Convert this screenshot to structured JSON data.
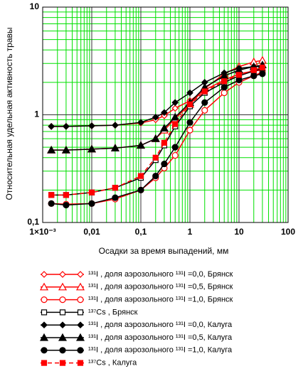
{
  "chart_data": {
    "type": "line",
    "y_label": "Относительная удельная активность травы",
    "x_label": "Осадки за время выпадений, мм",
    "log_x": true,
    "log_y": true,
    "grid": true,
    "minor_grid": true,
    "xlim": [
      0.001,
      100
    ],
    "xticks": [
      {
        "value": 0.001,
        "label": "1×10⁻³"
      },
      {
        "value": 0.01,
        "label": "0,01"
      },
      {
        "value": 0.1,
        "label": "0,1"
      },
      1,
      10,
      100
    ],
    "ylim": [
      0.1,
      10
    ],
    "yticks": [
      {
        "value": 0.1,
        "label": "0,1"
      },
      1,
      10
    ],
    "x": [
      0.0015,
      0.003,
      0.01,
      0.03,
      0.1,
      0.2,
      0.3,
      0.5,
      1,
      2,
      5,
      10,
      20,
      30
    ],
    "series": [
      {
        "name": "¹³¹I , доля аэрозольного ¹³¹I =0,0, Брянск",
        "color": "#ff0000",
        "marker": "diamond",
        "filled": false,
        "dashed": false,
        "values": [
          0.78,
          0.78,
          0.79,
          0.8,
          0.84,
          0.9,
          0.98,
          1.15,
          1.35,
          1.7,
          2.1,
          2.4,
          2.55,
          2.6
        ]
      },
      {
        "name": "¹³¹I , доля аэрозольного ¹³¹I =0,5, Брянск",
        "color": "#ff0000",
        "marker": "triangle",
        "filled": false,
        "dashed": false,
        "values": [
          0.47,
          0.47,
          0.48,
          0.49,
          0.52,
          0.6,
          0.72,
          0.92,
          1.25,
          1.75,
          2.4,
          2.8,
          3.1,
          3.2
        ]
      },
      {
        "name": "¹³¹I , доля аэрозольного ¹³¹I =1,0, Брянск",
        "color": "#ff0000",
        "marker": "circle",
        "filled": false,
        "dashed": false,
        "values": [
          0.15,
          0.148,
          0.15,
          0.165,
          0.2,
          0.26,
          0.32,
          0.42,
          0.72,
          1.1,
          1.6,
          2.0,
          2.3,
          2.5
        ]
      },
      {
        "name": "¹³⁷Cs , Брянск",
        "color": "#000000",
        "marker": "square",
        "filled": false,
        "dashed": false,
        "values": [
          0.18,
          0.18,
          0.19,
          0.21,
          0.26,
          0.38,
          0.52,
          0.78,
          1.2,
          1.6,
          2.0,
          2.3,
          2.55,
          2.7
        ]
      },
      {
        "name": "¹³¹I , доля аэрозольного ¹³¹I =0,0, Калуга",
        "color": "#000000",
        "marker": "diamond",
        "filled": true,
        "dashed": false,
        "values": [
          0.78,
          0.78,
          0.79,
          0.8,
          0.85,
          0.95,
          1.05,
          1.3,
          1.6,
          2.0,
          2.45,
          2.7,
          2.8,
          2.8
        ]
      },
      {
        "name": "¹³¹I , доля аэрозольного ¹³¹I =0,5, Калуга",
        "color": "#000000",
        "marker": "triangle",
        "filled": true,
        "dashed": false,
        "values": [
          0.47,
          0.47,
          0.48,
          0.49,
          0.52,
          0.6,
          0.75,
          0.95,
          1.3,
          1.8,
          2.3,
          2.6,
          2.8,
          2.9
        ]
      },
      {
        "name": "¹³¹I , доля аэрозольного ¹³¹I =1,0, Калуга",
        "color": "#000000",
        "marker": "circle",
        "filled": true,
        "dashed": false,
        "values": [
          0.15,
          0.145,
          0.15,
          0.17,
          0.2,
          0.27,
          0.35,
          0.5,
          0.85,
          1.3,
          1.8,
          2.1,
          2.3,
          2.4
        ]
      },
      {
        "name": "¹³⁷Cs , Калуга",
        "color": "#ff0000",
        "marker": "square",
        "filled": true,
        "dashed": true,
        "values": [
          0.18,
          0.18,
          0.19,
          0.21,
          0.27,
          0.4,
          0.55,
          0.82,
          1.25,
          1.65,
          2.05,
          2.35,
          2.6,
          2.75
        ]
      }
    ]
  }
}
